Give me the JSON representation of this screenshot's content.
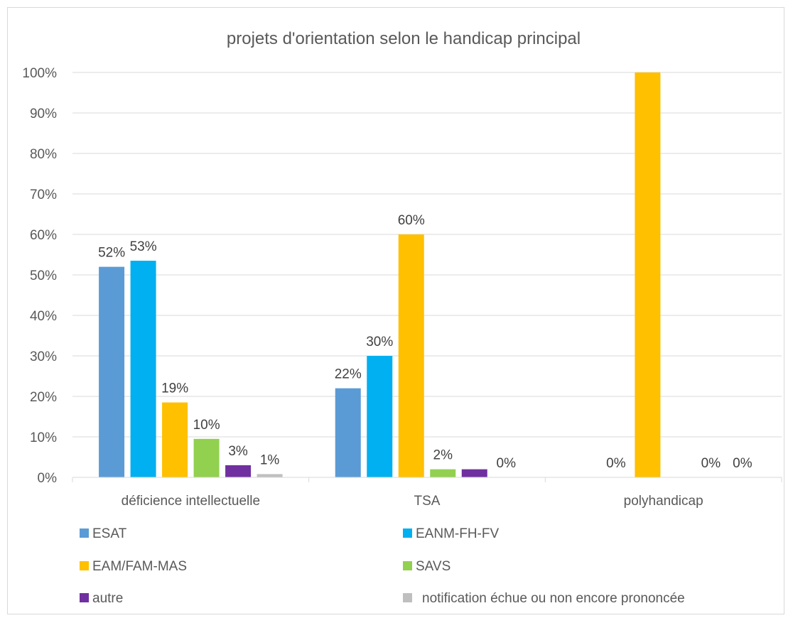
{
  "chart_data": {
    "type": "bar",
    "title": "projets d'orientation selon le handicap principal",
    "xlabel": "",
    "ylabel": "",
    "ylim": [
      0,
      1
    ],
    "y_ticks": [
      "0%",
      "10%",
      "20%",
      "30%",
      "40%",
      "50%",
      "60%",
      "70%",
      "80%",
      "90%",
      "100%"
    ],
    "categories": [
      "déficience intellectuelle",
      "TSA",
      "polyhandicap"
    ],
    "series": [
      {
        "name": "ESAT",
        "color": "#5b9bd5",
        "values": [
          0.52,
          0.22,
          0.0
        ],
        "labels": [
          "52%",
          "22%",
          ""
        ]
      },
      {
        "name": "EANM-FH-FV",
        "color": "#00b0f0",
        "values": [
          0.535,
          0.3,
          0.0
        ],
        "labels": [
          "53%",
          "30%",
          "0%"
        ]
      },
      {
        "name": "EAM/FAM-MAS",
        "color": "#ffc000",
        "values": [
          0.185,
          0.6,
          1.0
        ],
        "labels": [
          "19%",
          "60%",
          ""
        ]
      },
      {
        "name": "SAVS",
        "color": "#92d050",
        "values": [
          0.095,
          0.02,
          0.0
        ],
        "labels": [
          "10%",
          "2%",
          ""
        ]
      },
      {
        "name": "autre",
        "color": "#7030a0",
        "values": [
          0.03,
          0.02,
          0.0
        ],
        "labels": [
          "3%",
          "",
          "0%"
        ]
      },
      {
        "name": "notification échue ou non encore prononcée",
        "color": "#bfbfbf",
        "values": [
          0.008,
          0.0,
          0.0
        ],
        "labels": [
          "1%",
          "0%",
          "0%"
        ]
      }
    ],
    "grid": true,
    "legend_position": "bottom"
  }
}
